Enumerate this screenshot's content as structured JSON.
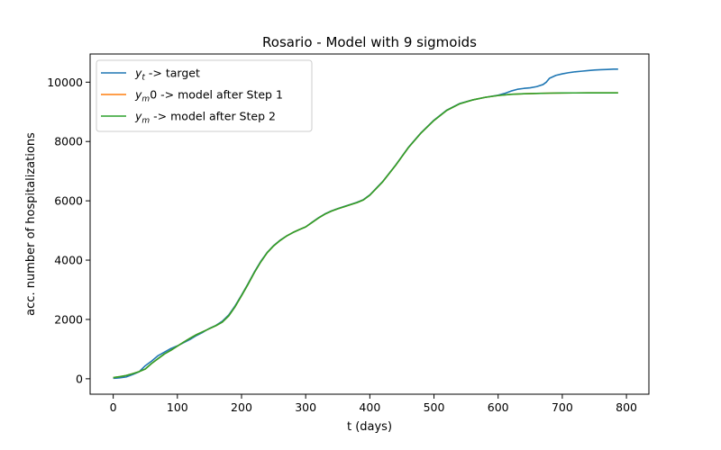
{
  "chart_data": {
    "type": "line",
    "title": "Rosario - Model with 9 sigmoids",
    "xlabel": "t (days)",
    "ylabel": "acc. number of hospitalizations",
    "xlim": [
      -36,
      835
    ],
    "ylim": [
      -520,
      10950
    ],
    "xticks": [
      0,
      100,
      200,
      300,
      400,
      500,
      600,
      700,
      800
    ],
    "yticks": [
      0,
      2000,
      4000,
      6000,
      8000,
      10000
    ],
    "grid": false,
    "legend_position": "top-left",
    "series": [
      {
        "name_var": "y",
        "name_sub": "t",
        "name_rest": " ->  target",
        "color": "#1f77b4",
        "x": [
          0,
          10,
          20,
          30,
          40,
          50,
          60,
          70,
          80,
          90,
          100,
          110,
          120,
          130,
          140,
          150,
          160,
          170,
          180,
          190,
          200,
          210,
          220,
          230,
          240,
          250,
          260,
          270,
          280,
          290,
          300,
          310,
          320,
          330,
          340,
          350,
          360,
          370,
          380,
          390,
          400,
          420,
          440,
          460,
          480,
          500,
          520,
          540,
          560,
          580,
          600,
          610,
          620,
          630,
          640,
          650,
          660,
          670,
          675,
          680,
          690,
          700,
          710,
          720,
          730,
          740,
          750,
          760,
          770,
          780,
          787
        ],
        "y": [
          15,
          30,
          60,
          140,
          230,
          440,
          600,
          780,
          900,
          1020,
          1110,
          1220,
          1330,
          1460,
          1570,
          1700,
          1800,
          1940,
          2150,
          2460,
          2820,
          3200,
          3600,
          3960,
          4260,
          4490,
          4670,
          4810,
          4930,
          5030,
          5120,
          5280,
          5430,
          5560,
          5660,
          5740,
          5810,
          5880,
          5950,
          6040,
          6200,
          6650,
          7200,
          7800,
          8300,
          8720,
          9060,
          9280,
          9400,
          9490,
          9560,
          9620,
          9700,
          9760,
          9790,
          9810,
          9850,
          9920,
          10000,
          10130,
          10230,
          10280,
          10320,
          10350,
          10370,
          10390,
          10410,
          10420,
          10430,
          10440,
          10440
        ]
      },
      {
        "name_var": "y",
        "name_sub": "m",
        "name_rest": "0 ->  model after Step 1",
        "color": "#ff7f0e",
        "x": [
          0,
          10,
          20,
          30,
          40,
          50,
          60,
          70,
          80,
          90,
          100,
          110,
          120,
          130,
          140,
          150,
          160,
          170,
          180,
          190,
          200,
          210,
          220,
          230,
          240,
          250,
          260,
          270,
          280,
          290,
          300,
          310,
          320,
          330,
          340,
          350,
          360,
          370,
          380,
          390,
          400,
          420,
          440,
          460,
          480,
          500,
          520,
          540,
          560,
          580,
          600,
          620,
          640,
          660,
          680,
          700,
          720,
          740,
          760,
          787
        ],
        "y": [
          40,
          70,
          110,
          170,
          240,
          330,
          520,
          680,
          840,
          960,
          1100,
          1240,
          1370,
          1490,
          1590,
          1690,
          1790,
          1910,
          2120,
          2430,
          2800,
          3180,
          3580,
          3940,
          4250,
          4480,
          4660,
          4810,
          4930,
          5030,
          5120,
          5270,
          5420,
          5550,
          5650,
          5730,
          5800,
          5870,
          5940,
          6030,
          6190,
          6640,
          7190,
          7790,
          8290,
          8710,
          9050,
          9270,
          9400,
          9490,
          9550,
          9590,
          9610,
          9620,
          9630,
          9635,
          9638,
          9640,
          9640,
          9640
        ]
      },
      {
        "name_var": "y",
        "name_sub": "m",
        "name_rest": " ->  model after Step 2",
        "color": "#2ca02c",
        "x": [
          0,
          10,
          20,
          30,
          40,
          50,
          60,
          70,
          80,
          90,
          100,
          110,
          120,
          130,
          140,
          150,
          160,
          170,
          180,
          190,
          200,
          210,
          220,
          230,
          240,
          250,
          260,
          270,
          280,
          290,
          300,
          310,
          320,
          330,
          340,
          350,
          360,
          370,
          380,
          390,
          400,
          420,
          440,
          460,
          480,
          500,
          520,
          540,
          560,
          580,
          600,
          620,
          640,
          660,
          680,
          700,
          720,
          740,
          760,
          787
        ],
        "y": [
          40,
          70,
          110,
          170,
          240,
          330,
          520,
          680,
          840,
          960,
          1100,
          1240,
          1370,
          1490,
          1590,
          1690,
          1790,
          1910,
          2120,
          2430,
          2800,
          3180,
          3580,
          3940,
          4250,
          4480,
          4660,
          4810,
          4930,
          5030,
          5120,
          5270,
          5420,
          5550,
          5650,
          5730,
          5800,
          5870,
          5940,
          6030,
          6190,
          6640,
          7190,
          7790,
          8290,
          8710,
          9050,
          9270,
          9400,
          9490,
          9550,
          9590,
          9610,
          9620,
          9630,
          9635,
          9638,
          9640,
          9640,
          9640
        ]
      }
    ]
  }
}
